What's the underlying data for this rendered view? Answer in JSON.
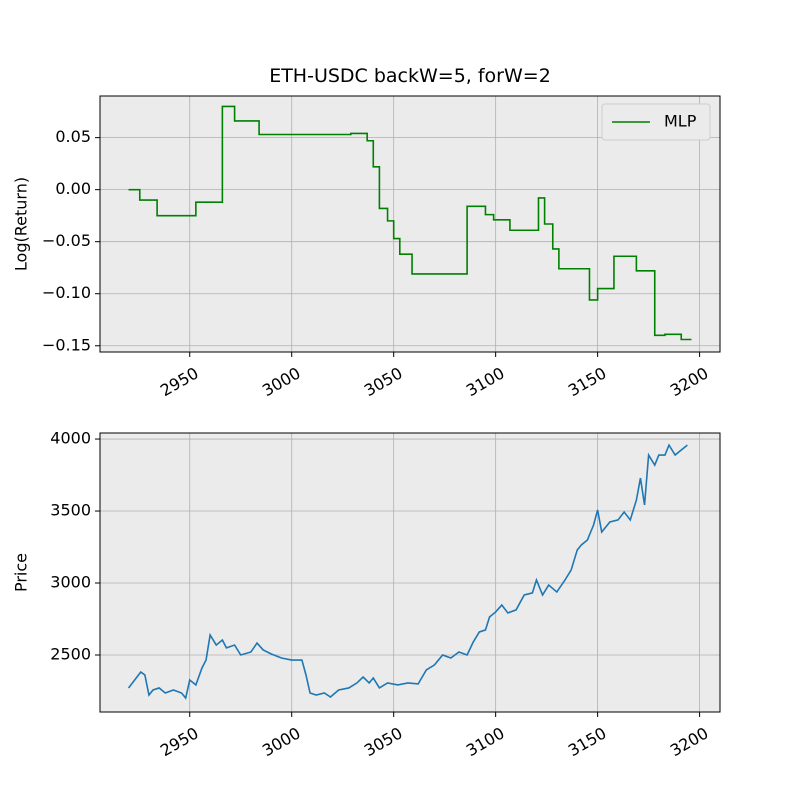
{
  "chart_data": [
    {
      "type": "line",
      "title": "ETH-USDC backW=5, forW=2",
      "y_label": "Log(Return)",
      "drawstyle": "steps-post",
      "grid": true,
      "legend": "upper right",
      "x": [
        2920,
        2925.5,
        2934,
        2953,
        2966,
        2972,
        2984,
        3029,
        3037,
        3040,
        3043,
        3047,
        3050,
        3053,
        3059,
        3086,
        3095,
        3099,
        3107,
        3121,
        3124,
        3128,
        3131,
        3146,
        3150,
        3158,
        3169,
        3178,
        3183,
        3191,
        3196
      ],
      "series": [
        {
          "name": "MLP",
          "color": "#008000",
          "values": [
            0,
            -0.01,
            -0.025,
            -0.012,
            0.08,
            0.066,
            0.053,
            0.054,
            0.047,
            0.022,
            -0.018,
            -0.03,
            -0.047,
            -0.062,
            -0.081,
            -0.016,
            -0.024,
            -0.029,
            -0.039,
            -0.008,
            -0.033,
            -0.057,
            -0.076,
            -0.106,
            -0.095,
            -0.064,
            -0.078,
            -0.14,
            -0.139,
            -0.144,
            -0.144
          ]
        }
      ],
      "xlim": [
        2906,
        3210
      ],
      "xticks": [
        2950,
        3000,
        3050,
        3100,
        3150,
        3200
      ],
      "ylim": [
        -0.156,
        0.09
      ],
      "yticks": [
        0.05,
        {
          "value": 0,
          "label": "0.00"
        },
        {
          "value": -0.05,
          "label": "−0.05"
        },
        {
          "value": -0.1,
          "label": "−0.10"
        },
        {
          "value": -0.15,
          "label": "−0.15"
        }
      ]
    },
    {
      "type": "line",
      "y_label": "Price",
      "grid": true,
      "x": [
        2920,
        2923,
        2926,
        2928,
        2930,
        2932,
        2935,
        2938,
        2942,
        2946,
        2948,
        2950,
        2953,
        2956,
        2958,
        2960,
        2963,
        2966,
        2968,
        2972,
        2975,
        2980,
        2983,
        2986,
        2990,
        2995,
        3000,
        3005,
        3007,
        3009,
        3012,
        3016,
        3019,
        3023,
        3028,
        3032,
        3035,
        3038,
        3040,
        3043,
        3047,
        3052,
        3057,
        3062,
        3066,
        3070,
        3074,
        3078,
        3082,
        3086,
        3089,
        3092,
        3095,
        3097,
        3100,
        3103,
        3106,
        3110,
        3114,
        3118,
        3120,
        3123,
        3126,
        3130,
        3134,
        3137,
        3140,
        3142,
        3145,
        3148,
        3150,
        3152,
        3156,
        3160,
        3163,
        3166,
        3169,
        3171,
        3173,
        3175,
        3178,
        3180,
        3183,
        3185,
        3188,
        3191,
        3194
      ],
      "series": [
        {
          "name": "Price",
          "color": "#1f77b4",
          "values": [
            2271,
            2326,
            2382,
            2361,
            2222,
            2257,
            2271,
            2236,
            2257,
            2236,
            2201,
            2326,
            2292,
            2410,
            2465,
            2639,
            2569,
            2604,
            2549,
            2569,
            2500,
            2521,
            2583,
            2535,
            2507,
            2479,
            2465,
            2465,
            2361,
            2236,
            2222,
            2236,
            2208,
            2257,
            2271,
            2306,
            2347,
            2306,
            2340,
            2271,
            2306,
            2292,
            2306,
            2299,
            2396,
            2431,
            2500,
            2479,
            2521,
            2500,
            2590,
            2660,
            2674,
            2764,
            2799,
            2847,
            2792,
            2813,
            2917,
            2931,
            3021,
            2917,
            2986,
            2938,
            3021,
            3090,
            3229,
            3264,
            3299,
            3403,
            3507,
            3354,
            3424,
            3438,
            3493,
            3438,
            3576,
            3729,
            3542,
            3889,
            3819,
            3889,
            3889,
            3958,
            3889,
            3924,
            3958
          ]
        }
      ],
      "xlim": [
        2906,
        3210
      ],
      "xticks": [
        2950,
        3000,
        3050,
        3100,
        3150,
        3200
      ],
      "ylim": [
        2104,
        4042
      ],
      "yticks": [
        2500,
        3000,
        3500,
        4000
      ]
    }
  ]
}
